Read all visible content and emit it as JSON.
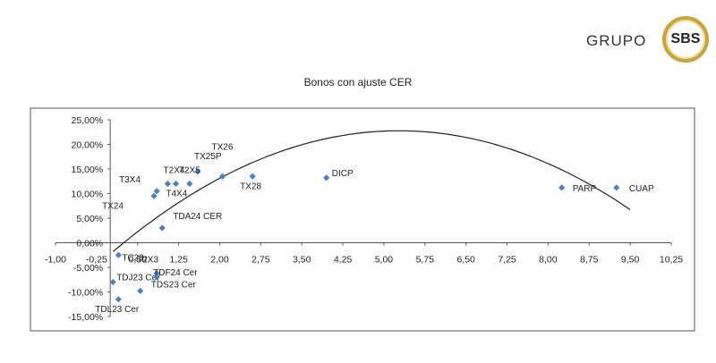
{
  "brand": {
    "name": "GRUPO",
    "badge": "SBS"
  },
  "chart_data": {
    "type": "scatter",
    "title": "Bonos con ajuste CER",
    "xlim": [
      -1.0,
      10.25
    ],
    "ylim": [
      -15.0,
      25.0
    ],
    "x_ticks": [
      "-1,00",
      "-0,25",
      "0,50",
      "1,25",
      "2,00",
      "2,75",
      "3,50",
      "4,25",
      "5,00",
      "5,75",
      "6,50",
      "7,25",
      "8,00",
      "8,75",
      "9,50",
      "10,25"
    ],
    "y_ticks": [
      "25,00%",
      "20,00%",
      "15,00%",
      "10,00%",
      "5,00%",
      "0,00%",
      "-5,00%",
      "-10,00%",
      "-15,00%"
    ],
    "marker_color": "#4f81bd",
    "trend_color": "#222222",
    "trendline": {
      "type": "polynomial",
      "coefficients": [
        -2.3,
        9.5,
        -0.9
      ]
    },
    "points": [
      {
        "label": "TX26",
        "x": 2.05,
        "y": 13.5
      },
      {
        "label": "TX25P",
        "x": 1.6,
        "y": 14.5
      },
      {
        "label": "T2X5",
        "x": 1.45,
        "y": 12.0
      },
      {
        "label": "T2X4",
        "x": 1.2,
        "y": 12.0
      },
      {
        "label": "T3X4",
        "x": 0.85,
        "y": 10.5
      },
      {
        "label": "TX24",
        "x": 0.8,
        "y": 9.5
      },
      {
        "label": "T4X4",
        "x": 1.05,
        "y": 12.0
      },
      {
        "label": "TX28",
        "x": 2.6,
        "y": 13.5
      },
      {
        "label": "DICP",
        "x": 3.95,
        "y": 13.2
      },
      {
        "label": "PARP",
        "x": 8.25,
        "y": 11.2
      },
      {
        "label": "CUAP",
        "x": 9.25,
        "y": 11.2
      },
      {
        "label": "TDA24 CER",
        "x": 0.95,
        "y": 3.0
      },
      {
        "label": "TC23",
        "x": 0.15,
        "y": -2.5
      },
      {
        "label": "T2X3",
        "x": 0.85,
        "y": -6.2
      },
      {
        "label": "TDJ23 Cer",
        "x": 0.05,
        "y": -8.0
      },
      {
        "label": "TDF24 Cer",
        "x": 0.85,
        "y": -7.0
      },
      {
        "label": "TDS23 Cer",
        "x": 0.55,
        "y": -9.8
      },
      {
        "label": "TDL23 Cer",
        "x": 0.15,
        "y": -11.5
      }
    ]
  }
}
